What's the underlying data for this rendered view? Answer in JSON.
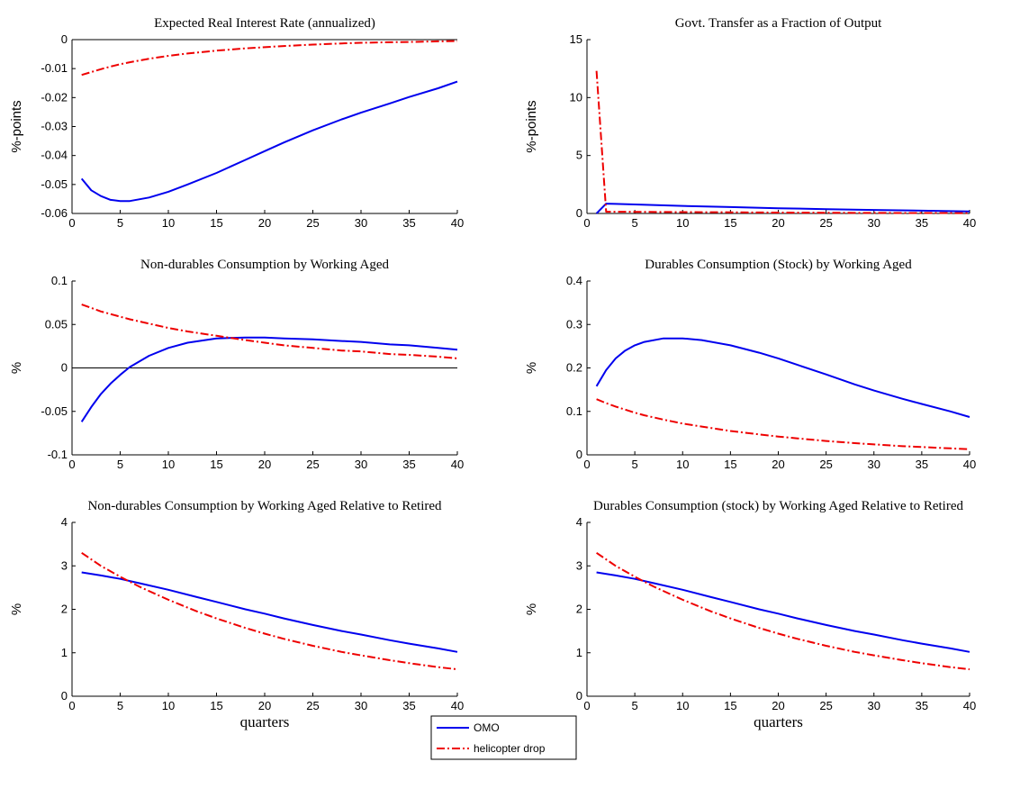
{
  "legend": {
    "items": [
      {
        "label": "OMO",
        "color": "#0000ee",
        "dash": "solid"
      },
      {
        "label": "helicopter drop",
        "color": "#ee0000",
        "dash": "dashdot"
      }
    ]
  },
  "chart_data": [
    {
      "type": "line",
      "title": "Expected Real Interest Rate (annualized)",
      "xlabel": "",
      "ylabel": "%-points",
      "xlim": [
        0,
        40
      ],
      "ylim": [
        -0.06,
        0
      ],
      "xticks": [
        0,
        5,
        10,
        15,
        20,
        25,
        30,
        35,
        40
      ],
      "xtick_labels": [
        "0",
        "5",
        "10",
        "15",
        "20",
        "25",
        "30",
        "35",
        "40"
      ],
      "yticks": [
        -0.06,
        -0.05,
        -0.04,
        -0.03,
        -0.02,
        -0.01,
        0
      ],
      "ytick_labels": [
        "-0.06",
        "-0.05",
        "-0.04",
        "-0.03",
        "-0.02",
        "-0.01",
        "0"
      ],
      "zero_line": true,
      "x": [
        1,
        2,
        3,
        4,
        5,
        6,
        8,
        10,
        12,
        15,
        18,
        20,
        22,
        25,
        28,
        30,
        33,
        35,
        38,
        40
      ],
      "series": [
        {
          "name": "OMO",
          "values": [
            -0.048,
            -0.052,
            -0.054,
            -0.0553,
            -0.0557,
            -0.0557,
            -0.0545,
            -0.0525,
            -0.05,
            -0.046,
            -0.0415,
            -0.0385,
            -0.0355,
            -0.0313,
            -0.0275,
            -0.0252,
            -0.022,
            -0.0198,
            -0.0168,
            -0.0145
          ]
        },
        {
          "name": "helicopter drop",
          "values": [
            -0.0122,
            -0.0112,
            -0.0102,
            -0.0093,
            -0.0085,
            -0.0078,
            -0.0066,
            -0.0056,
            -0.0048,
            -0.0038,
            -0.003,
            -0.0026,
            -0.0022,
            -0.0017,
            -0.0013,
            -0.0011,
            -0.0009,
            -0.0008,
            -0.0006,
            -0.0005
          ]
        }
      ]
    },
    {
      "type": "line",
      "title": "Govt. Transfer as a Fraction of Output",
      "xlabel": "",
      "ylabel": "%-points",
      "xlim": [
        0,
        40
      ],
      "ylim": [
        0,
        15
      ],
      "xticks": [
        0,
        5,
        10,
        15,
        20,
        25,
        30,
        35,
        40
      ],
      "xtick_labels": [
        "0",
        "5",
        "10",
        "15",
        "20",
        "25",
        "30",
        "35",
        "40"
      ],
      "yticks": [
        0,
        5,
        10,
        15
      ],
      "ytick_labels": [
        "0",
        "5",
        "10",
        "15"
      ],
      "zero_line": false,
      "x": [
        1,
        2,
        3,
        5,
        10,
        15,
        20,
        25,
        30,
        35,
        40
      ],
      "series": [
        {
          "name": "OMO",
          "values": [
            0,
            0.85,
            0.82,
            0.78,
            0.65,
            0.55,
            0.45,
            0.37,
            0.3,
            0.24,
            0.18
          ]
        },
        {
          "name": "helicopter drop",
          "values": [
            12.3,
            0.15,
            0.15,
            0.14,
            0.12,
            0.1,
            0.08,
            0.06,
            0.05,
            0.04,
            0.03
          ]
        }
      ]
    },
    {
      "type": "line",
      "title": "Non-durables Consumption by Working Aged",
      "xlabel": "",
      "ylabel": "%",
      "xlim": [
        0,
        40
      ],
      "ylim": [
        -0.1,
        0.1
      ],
      "xticks": [
        0,
        5,
        10,
        15,
        20,
        25,
        30,
        35,
        40
      ],
      "xtick_labels": [
        "0",
        "5",
        "10",
        "15",
        "20",
        "25",
        "30",
        "35",
        "40"
      ],
      "yticks": [
        -0.1,
        -0.05,
        0,
        0.05,
        0.1
      ],
      "ytick_labels": [
        "-0.1",
        "-0.05",
        "0",
        "0.05",
        "0.1"
      ],
      "zero_line": true,
      "x": [
        1,
        2,
        3,
        4,
        5,
        6,
        8,
        10,
        12,
        15,
        18,
        20,
        22,
        25,
        28,
        30,
        33,
        35,
        38,
        40
      ],
      "series": [
        {
          "name": "OMO",
          "values": [
            -0.062,
            -0.045,
            -0.03,
            -0.018,
            -0.008,
            0.001,
            0.014,
            0.023,
            0.029,
            0.034,
            0.035,
            0.035,
            0.034,
            0.033,
            0.031,
            0.03,
            0.027,
            0.026,
            0.023,
            0.021
          ]
        },
        {
          "name": "helicopter drop",
          "values": [
            0.073,
            0.069,
            0.065,
            0.062,
            0.059,
            0.056,
            0.051,
            0.046,
            0.042,
            0.037,
            0.032,
            0.029,
            0.026,
            0.023,
            0.02,
            0.019,
            0.016,
            0.015,
            0.013,
            0.011
          ]
        }
      ]
    },
    {
      "type": "line",
      "title": "Durables Consumption (Stock) by Working Aged",
      "xlabel": "",
      "ylabel": "%",
      "xlim": [
        0,
        40
      ],
      "ylim": [
        0,
        0.4
      ],
      "xticks": [
        0,
        5,
        10,
        15,
        20,
        25,
        30,
        35,
        40
      ],
      "xtick_labels": [
        "0",
        "5",
        "10",
        "15",
        "20",
        "25",
        "30",
        "35",
        "40"
      ],
      "yticks": [
        0,
        0.1,
        0.2,
        0.3,
        0.4
      ],
      "ytick_labels": [
        "0",
        "0.1",
        "0.2",
        "0.3",
        "0.4"
      ],
      "zero_line": true,
      "x": [
        1,
        2,
        3,
        4,
        5,
        6,
        8,
        10,
        12,
        15,
        18,
        20,
        22,
        25,
        28,
        30,
        33,
        35,
        38,
        40
      ],
      "series": [
        {
          "name": "OMO",
          "values": [
            0.158,
            0.195,
            0.222,
            0.24,
            0.252,
            0.26,
            0.268,
            0.268,
            0.264,
            0.252,
            0.235,
            0.222,
            0.207,
            0.185,
            0.162,
            0.148,
            0.129,
            0.117,
            0.1,
            0.087
          ]
        },
        {
          "name": "helicopter drop",
          "values": [
            0.128,
            0.119,
            0.111,
            0.104,
            0.097,
            0.091,
            0.081,
            0.072,
            0.065,
            0.055,
            0.047,
            0.042,
            0.038,
            0.032,
            0.027,
            0.024,
            0.02,
            0.018,
            0.015,
            0.013
          ]
        }
      ]
    },
    {
      "type": "line",
      "title": "Non-durables Consumption by Working Aged Relative to Retired",
      "xlabel": "quarters",
      "ylabel": "%",
      "xlim": [
        0,
        40
      ],
      "ylim": [
        0,
        4
      ],
      "xticks": [
        0,
        5,
        10,
        15,
        20,
        25,
        30,
        35,
        40
      ],
      "xtick_labels": [
        "0",
        "5",
        "10",
        "15",
        "20",
        "25",
        "30",
        "35",
        "40"
      ],
      "yticks": [
        0,
        1,
        2,
        3,
        4
      ],
      "ytick_labels": [
        "0",
        "1",
        "2",
        "3",
        "4"
      ],
      "zero_line": false,
      "x": [
        1,
        3,
        5,
        7,
        10,
        13,
        15,
        18,
        20,
        22,
        25,
        28,
        30,
        33,
        35,
        38,
        40
      ],
      "series": [
        {
          "name": "OMO",
          "values": [
            2.85,
            2.78,
            2.7,
            2.6,
            2.45,
            2.28,
            2.17,
            2.0,
            1.9,
            1.79,
            1.64,
            1.5,
            1.42,
            1.29,
            1.21,
            1.1,
            1.02
          ]
        },
        {
          "name": "helicopter drop",
          "values": [
            3.3,
            3.0,
            2.75,
            2.52,
            2.22,
            1.95,
            1.79,
            1.57,
            1.44,
            1.32,
            1.16,
            1.02,
            0.94,
            0.83,
            0.76,
            0.67,
            0.62
          ]
        }
      ]
    },
    {
      "type": "line",
      "title": "Durables Consumption (stock) by Working Aged Relative to Retired",
      "xlabel": "quarters",
      "ylabel": "%",
      "xlim": [
        0,
        40
      ],
      "ylim": [
        0,
        4
      ],
      "xticks": [
        0,
        5,
        10,
        15,
        20,
        25,
        30,
        35,
        40
      ],
      "xtick_labels": [
        "0",
        "5",
        "10",
        "15",
        "20",
        "25",
        "30",
        "35",
        "40"
      ],
      "yticks": [
        0,
        1,
        2,
        3,
        4
      ],
      "ytick_labels": [
        "0",
        "1",
        "2",
        "3",
        "4"
      ],
      "zero_line": false,
      "x": [
        1,
        3,
        5,
        7,
        10,
        13,
        15,
        18,
        20,
        22,
        25,
        28,
        30,
        33,
        35,
        38,
        40
      ],
      "series": [
        {
          "name": "OMO",
          "values": [
            2.85,
            2.78,
            2.7,
            2.6,
            2.45,
            2.28,
            2.17,
            2.0,
            1.9,
            1.79,
            1.64,
            1.5,
            1.42,
            1.29,
            1.21,
            1.1,
            1.02
          ]
        },
        {
          "name": "helicopter drop",
          "values": [
            3.3,
            3.0,
            2.75,
            2.52,
            2.22,
            1.95,
            1.79,
            1.57,
            1.44,
            1.32,
            1.16,
            1.02,
            0.94,
            0.83,
            0.76,
            0.67,
            0.62
          ]
        }
      ]
    }
  ]
}
